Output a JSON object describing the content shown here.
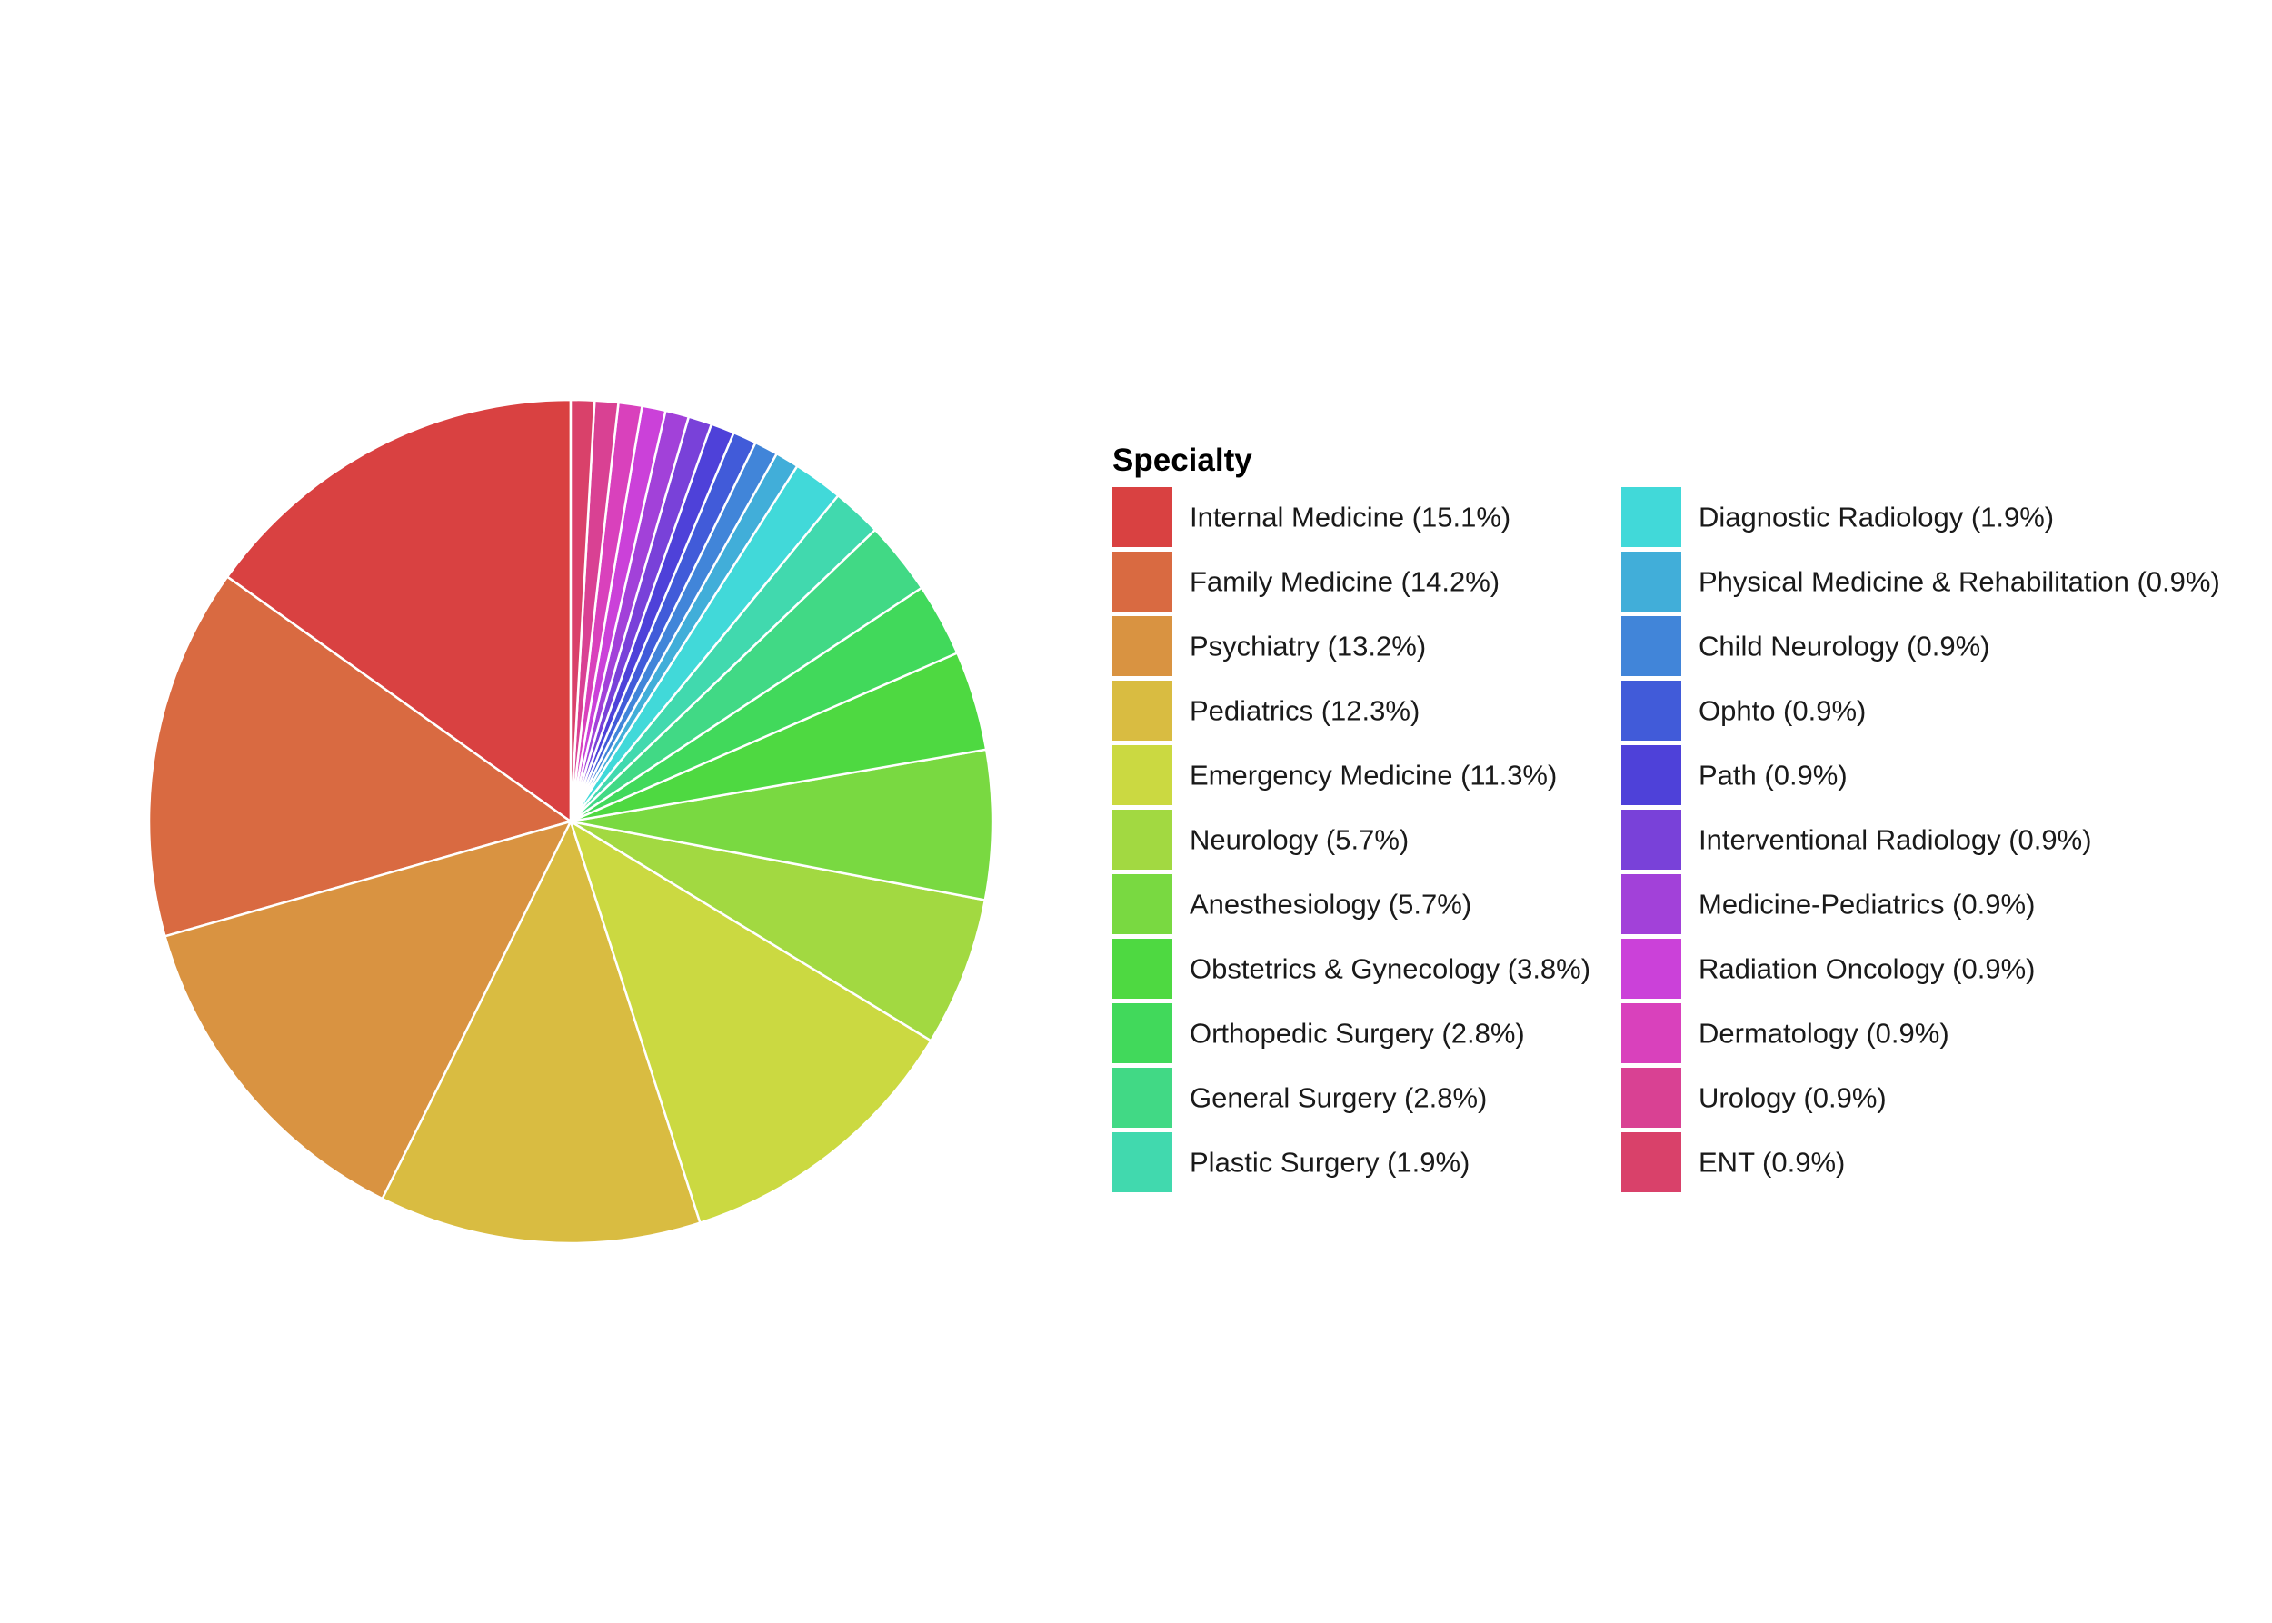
{
  "chart_data": {
    "type": "pie",
    "legend_title": "Specialty",
    "legend_position": "right",
    "legend_columns": 2,
    "start_angle": "12 o'clock",
    "direction": "counterclockwise",
    "slice_border_color": "#ffffff",
    "slices": [
      {
        "name": "Internal Medicine",
        "value": 15.1,
        "label": "Internal Medicine (15.1%)",
        "color": "#D94141"
      },
      {
        "name": "Family Medicine",
        "value": 14.2,
        "label": "Family Medicine (14.2%)",
        "color": "#D96A41"
      },
      {
        "name": "Psychiatry",
        "value": 13.2,
        "label": "Psychiatry (13.2%)",
        "color": "#D99341"
      },
      {
        "name": "Pediatrics",
        "value": 12.3,
        "label": "Pediatrics (12.3%)",
        "color": "#D9BC41"
      },
      {
        "name": "Emergency Medicine",
        "value": 11.3,
        "label": "Emergency Medicine (11.3%)",
        "color": "#CBD941"
      },
      {
        "name": "Neurology",
        "value": 5.7,
        "label": "Neurology (5.7%)",
        "color": "#A2D941"
      },
      {
        "name": "Anesthesiology",
        "value": 5.7,
        "label": "Anesthesiology (5.7%)",
        "color": "#79D941"
      },
      {
        "name": "Obstetrics & Gynecology",
        "value": 3.8,
        "label": "Obstetrics & Gynecology (3.8%)",
        "color": "#4ED941"
      },
      {
        "name": "Orthopedic Surgery",
        "value": 2.8,
        "label": "Orthopedic Surgery (2.8%)",
        "color": "#41D95B"
      },
      {
        "name": "General Surgery",
        "value": 2.8,
        "label": "General Surgery (2.8%)",
        "color": "#41D985"
      },
      {
        "name": "Plastic Surgery",
        "value": 1.9,
        "label": "Plastic Surgery (1.9%)",
        "color": "#41D9AE"
      },
      {
        "name": "Diagnostic Radiology",
        "value": 1.9,
        "label": "Diagnostic Radiology (1.9%)",
        "color": "#41D9D9"
      },
      {
        "name": "Physical Medicine & Rehabilitation",
        "value": 0.9,
        "label": "Physical Medicine & Rehabilitation (0.9%)",
        "color": "#41AED9"
      },
      {
        "name": "Child Neurology",
        "value": 0.9,
        "label": "Child Neurology (0.9%)",
        "color": "#4185D9"
      },
      {
        "name": "Ophto",
        "value": 0.9,
        "label": "Ophto (0.9%)",
        "color": "#415BD9"
      },
      {
        "name": "Path",
        "value": 0.9,
        "label": "Path (0.9%)",
        "color": "#4E41D9"
      },
      {
        "name": "Interventional Radiology",
        "value": 0.9,
        "label": "Interventional Radiology (0.9%)",
        "color": "#7941D9"
      },
      {
        "name": "Medicine-Pediatrics",
        "value": 0.9,
        "label": "Medicine-Pediatrics (0.9%)",
        "color": "#A241D9"
      },
      {
        "name": "Radiation Oncology",
        "value": 0.9,
        "label": "Radiation Oncology (0.9%)",
        "color": "#CB41D9"
      },
      {
        "name": "Dermatology",
        "value": 0.9,
        "label": "Dermatology (0.9%)",
        "color": "#D941BC"
      },
      {
        "name": "Urology",
        "value": 0.9,
        "label": "Urology (0.9%)",
        "color": "#D94193"
      },
      {
        "name": "ENT",
        "value": 0.9,
        "label": "ENT (0.9%)",
        "color": "#D9416A"
      }
    ]
  }
}
